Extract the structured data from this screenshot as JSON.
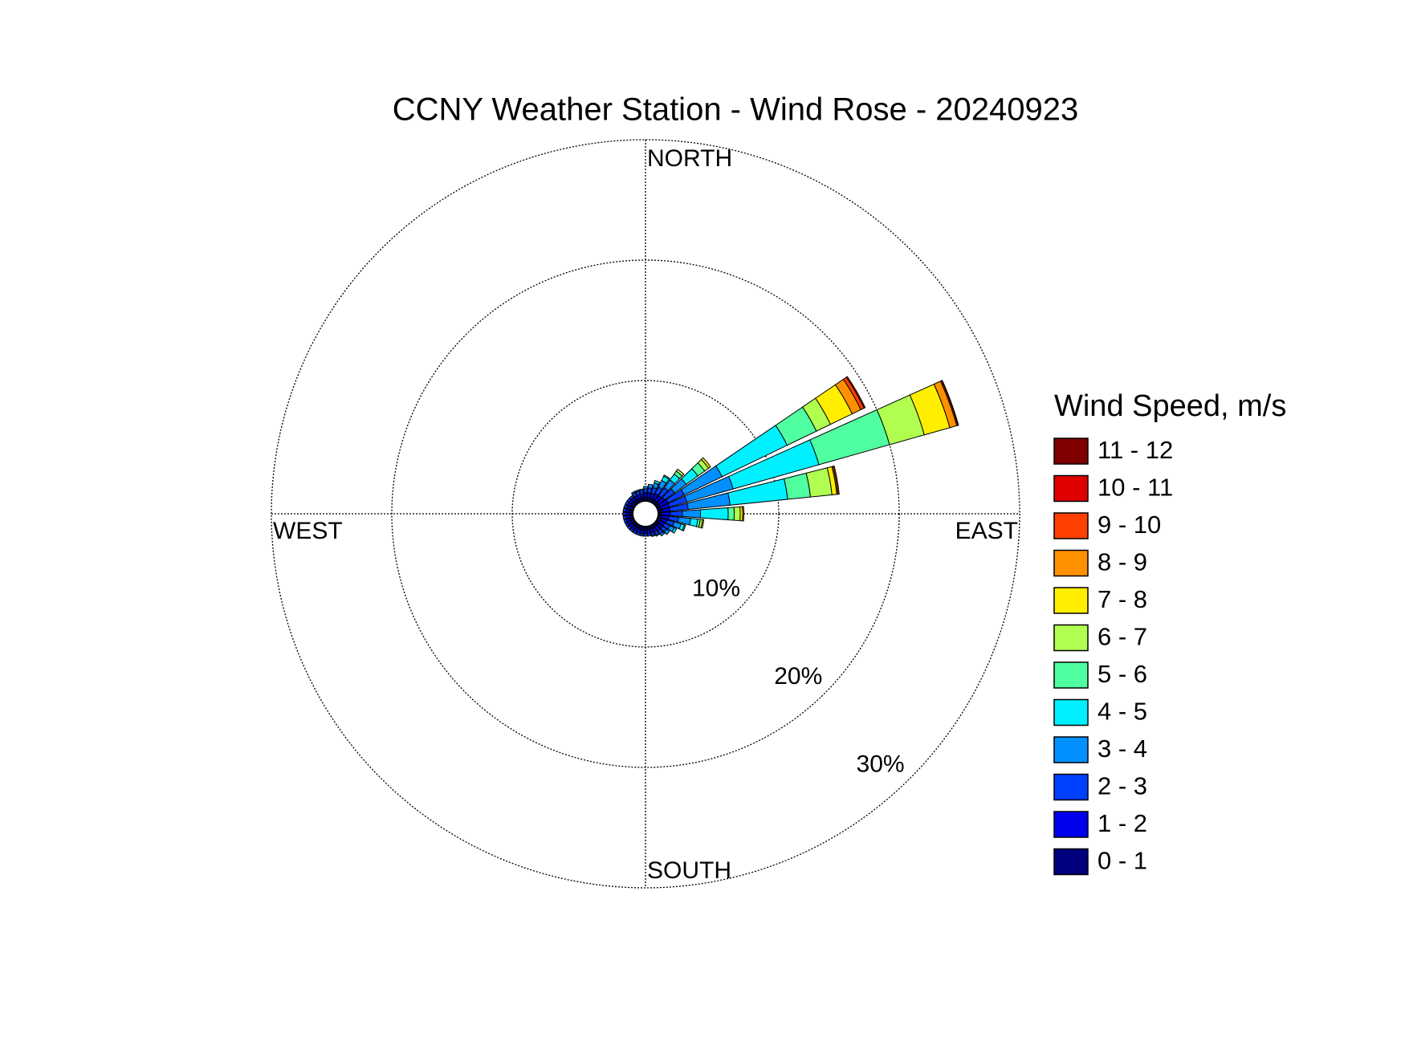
{
  "chart_data": {
    "type": "windrose",
    "title": "CCNY Weather Station - Wind Rose - 20240923",
    "legend_title": "Wind Speed, m/s",
    "compass": {
      "north": "NORTH",
      "east": "EAST",
      "south": "SOUTH",
      "west": "WEST"
    },
    "directions": [
      0,
      10,
      20,
      30,
      40,
      50,
      60,
      70,
      80,
      90,
      100,
      110,
      120,
      130,
      140,
      150,
      160,
      170,
      180,
      190,
      200,
      210,
      220,
      230,
      240,
      250,
      260,
      270,
      280,
      290,
      300,
      310,
      320,
      330,
      340,
      350
    ],
    "rlim": [
      0,
      30
    ],
    "rticks": [
      {
        "value": 10,
        "label": "10%"
      },
      {
        "value": 20,
        "label": "20%"
      },
      {
        "value": 30,
        "label": "30%"
      }
    ],
    "grid": true,
    "series": [
      {
        "name": "0 - 1",
        "color": "#00007f",
        "values": [
          0.3,
          0.3,
          0.3,
          0.3,
          0.3,
          0.3,
          0.3,
          0.3,
          0.3,
          0.3,
          0.3,
          0.3,
          0.3,
          0.3,
          0.3,
          0.3,
          0.3,
          0.3,
          0.3,
          0.3,
          0.3,
          0.3,
          0.3,
          0.3,
          0.3,
          0.3,
          0.3,
          0.3,
          0.3,
          0.3,
          0.3,
          0.3,
          0.3,
          0.3,
          0.3,
          0.3
        ]
      },
      {
        "name": "1 - 2",
        "color": "#0000ee",
        "values": [
          0.4,
          0.4,
          0.4,
          0.5,
          0.5,
          0.6,
          0.7,
          0.7,
          0.7,
          0.7,
          0.6,
          0.5,
          0.4,
          0.4,
          0.4,
          0.3,
          0.3,
          0.3,
          0.3,
          0.3,
          0.3,
          0.3,
          0.3,
          0.3,
          0.3,
          0.3,
          0.3,
          0.3,
          0.3,
          0.3,
          0.3,
          0.3,
          0.3,
          0.3,
          0.3,
          0.3
        ]
      },
      {
        "name": "2 - 3",
        "color": "#0040ff",
        "values": [
          0.3,
          0.4,
          0.5,
          0.6,
          0.8,
          1.0,
          1.5,
          1.5,
          1.5,
          1.0,
          0.8,
          0.6,
          0.5,
          0.4,
          0.3,
          0.3,
          0.2,
          0.2,
          0.2,
          0.2,
          0.2,
          0.2,
          0.2,
          0.2,
          0.2,
          0.2,
          0.2,
          0.2,
          0.2,
          0.2,
          0.2,
          0.2,
          0.2,
          0.3,
          0.3,
          0.3
        ]
      },
      {
        "name": "3 - 4",
        "color": "#0090ff",
        "values": [
          0.2,
          0.3,
          0.4,
          0.6,
          0.8,
          1.2,
          3.5,
          4.0,
          3.5,
          1.5,
          1.0,
          0.6,
          0.4,
          0.3,
          0.2,
          0.1,
          0.1,
          0,
          0,
          0,
          0,
          0,
          0,
          0,
          0,
          0,
          0,
          0,
          0,
          0,
          0,
          0,
          0,
          0.1,
          0.1,
          0.1
        ]
      },
      {
        "name": "4 - 5",
        "color": "#00f0ff",
        "values": [
          0,
          0,
          0.2,
          0.4,
          0.6,
          1.2,
          6.0,
          7.4,
          4.8,
          2.3,
          0.6,
          0.3,
          0.2,
          0,
          0,
          0,
          0,
          0,
          0,
          0,
          0,
          0,
          0,
          0,
          0,
          0,
          0,
          0,
          0,
          0,
          0,
          0,
          0,
          0,
          0,
          0
        ]
      },
      {
        "name": "5 - 6",
        "color": "#50ffa0",
        "values": [
          0,
          0,
          0,
          0.1,
          0.3,
          0.7,
          2.7,
          6.1,
          1.9,
          0.5,
          0.2,
          0.1,
          0,
          0,
          0,
          0,
          0,
          0,
          0,
          0,
          0,
          0,
          0,
          0,
          0,
          0,
          0,
          0,
          0,
          0,
          0,
          0,
          0,
          0,
          0,
          0
        ]
      },
      {
        "name": "6 - 7",
        "color": "#b0ff50",
        "values": [
          0,
          0,
          0,
          0,
          0.2,
          0.4,
          1.3,
          3.0,
          1.8,
          0.5,
          0.2,
          0,
          0,
          0,
          0,
          0,
          0,
          0,
          0,
          0,
          0,
          0,
          0,
          0,
          0,
          0,
          0,
          0,
          0,
          0,
          0,
          0,
          0,
          0,
          0,
          0
        ]
      },
      {
        "name": "7 - 8",
        "color": "#ffee00",
        "values": [
          0,
          0,
          0,
          0,
          0,
          0.2,
          2.0,
          2.2,
          0.4,
          0.2,
          0.1,
          0,
          0,
          0,
          0,
          0,
          0,
          0,
          0,
          0,
          0,
          0,
          0,
          0,
          0,
          0,
          0,
          0,
          0,
          0,
          0,
          0,
          0,
          0,
          0,
          0
        ]
      },
      {
        "name": "8 - 9",
        "color": "#ff9000",
        "values": [
          0,
          0,
          0,
          0,
          0,
          0,
          0.8,
          0.6,
          0.1,
          0.1,
          0,
          0,
          0,
          0,
          0,
          0,
          0,
          0,
          0,
          0,
          0,
          0,
          0,
          0,
          0,
          0,
          0,
          0,
          0,
          0,
          0,
          0,
          0,
          0,
          0,
          0
        ]
      },
      {
        "name": "9 - 10",
        "color": "#ff4000",
        "values": [
          0,
          0,
          0,
          0,
          0,
          0,
          0.3,
          0.1,
          0.1,
          0,
          0,
          0,
          0,
          0,
          0,
          0,
          0,
          0,
          0,
          0,
          0,
          0,
          0,
          0,
          0,
          0,
          0,
          0,
          0,
          0,
          0,
          0,
          0,
          0,
          0,
          0
        ]
      },
      {
        "name": "10 - 11",
        "color": "#e00000",
        "values": [
          0,
          0,
          0,
          0,
          0,
          0,
          0.1,
          0.05,
          0,
          0,
          0,
          0,
          0,
          0,
          0,
          0,
          0,
          0,
          0,
          0,
          0,
          0,
          0,
          0,
          0,
          0,
          0,
          0,
          0,
          0,
          0,
          0,
          0,
          0,
          0,
          0
        ]
      },
      {
        "name": "11 - 12",
        "color": "#800000",
        "values": [
          0,
          0,
          0,
          0,
          0,
          0,
          0,
          0,
          0,
          0,
          0,
          0,
          0,
          0,
          0,
          0,
          0,
          0,
          0,
          0,
          0,
          0,
          0,
          0,
          0,
          0,
          0,
          0,
          0,
          0,
          0,
          0,
          0,
          0,
          0,
          0
        ]
      }
    ]
  }
}
